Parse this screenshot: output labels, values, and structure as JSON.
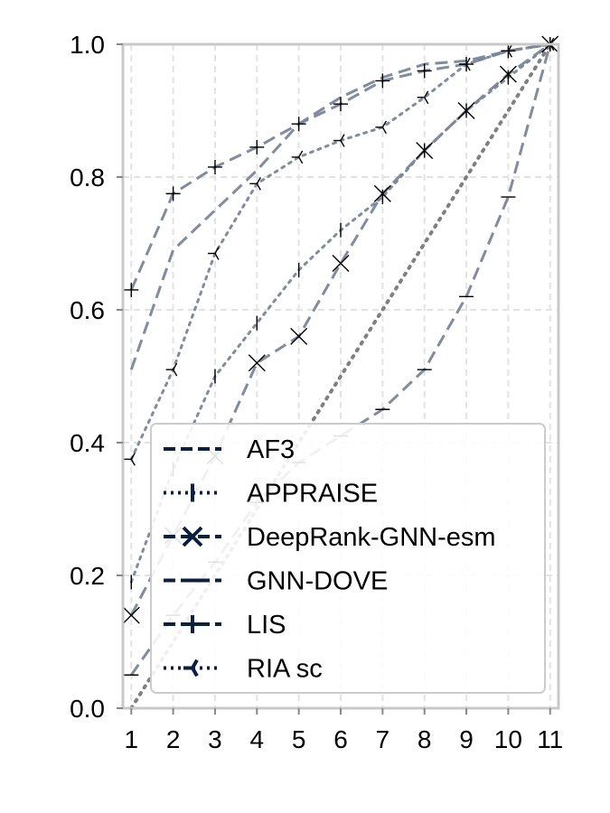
{
  "chart_data": {
    "type": "line",
    "title": "",
    "xlabel": "",
    "ylabel": "",
    "x": [
      1,
      2,
      3,
      4,
      5,
      6,
      7,
      8,
      9,
      10,
      11
    ],
    "xlim": [
      0.8,
      11.2
    ],
    "ylim": [
      0.0,
      1.0
    ],
    "xticks": [
      "1",
      "2",
      "3",
      "4",
      "5",
      "6",
      "7",
      "8",
      "9",
      "10",
      "11"
    ],
    "yticks": [
      "0.0",
      "0.2",
      "0.4",
      "0.6",
      "0.8",
      "1.0"
    ],
    "grid": true,
    "legend_position": "lower-right",
    "line_color": "#7a8699",
    "marker_color": "#000000",
    "legend_color": "#0b1f3f",
    "reference_line": {
      "x": [
        1,
        11
      ],
      "y": [
        0.0,
        1.0
      ],
      "color": "#808080",
      "style": "dotted"
    },
    "series": [
      {
        "name": "AF3",
        "style": "dashed",
        "marker": "none",
        "values": [
          0.51,
          0.69,
          0.75,
          0.81,
          0.88,
          0.92,
          0.95,
          0.97,
          0.975,
          0.99,
          1.0
        ]
      },
      {
        "name": "APPRAISE",
        "style": "dotted",
        "marker": "vline",
        "values": [
          0.19,
          0.36,
          0.5,
          0.58,
          0.66,
          0.72,
          0.77,
          0.84,
          0.9,
          0.95,
          1.0
        ]
      },
      {
        "name": "DeepRank-GNN-esm",
        "style": "dashed",
        "marker": "x",
        "values": [
          0.14,
          0.26,
          0.38,
          0.52,
          0.56,
          0.67,
          0.775,
          0.84,
          0.9,
          0.955,
          1.0
        ]
      },
      {
        "name": "GNN-DOVE",
        "style": "dashed",
        "marker": "hline",
        "values": [
          0.05,
          0.14,
          0.22,
          0.31,
          0.37,
          0.41,
          0.45,
          0.51,
          0.62,
          0.77,
          1.0
        ]
      },
      {
        "name": "LIS",
        "style": "dashed",
        "marker": "plus",
        "values": [
          0.63,
          0.775,
          0.815,
          0.845,
          0.88,
          0.91,
          0.945,
          0.96,
          0.97,
          0.99,
          1.0
        ]
      },
      {
        "name": "RIA sc",
        "style": "dotted",
        "marker": "tri",
        "values": [
          0.375,
          0.51,
          0.685,
          0.79,
          0.83,
          0.855,
          0.875,
          0.92,
          0.97,
          0.99,
          1.0
        ]
      }
    ]
  }
}
